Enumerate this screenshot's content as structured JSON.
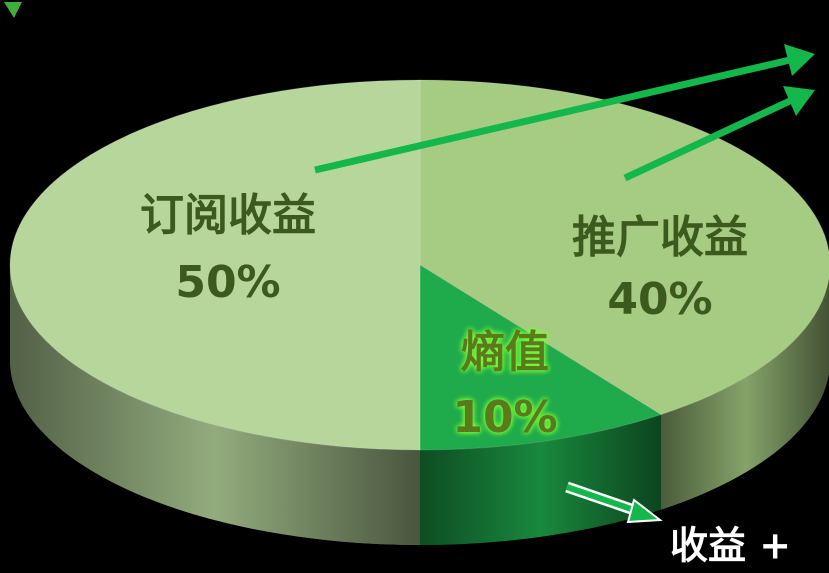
{
  "chart_data": {
    "type": "pie",
    "categories": [
      "订阅收益",
      "推广收益",
      "熵值"
    ],
    "values": [
      50,
      40,
      10
    ],
    "value_labels": [
      "50%",
      "40%",
      "10%"
    ],
    "colors": [
      "#b7d69c",
      "#a6cb83",
      "#1faa4c"
    ],
    "annotation": "收益 +"
  }
}
